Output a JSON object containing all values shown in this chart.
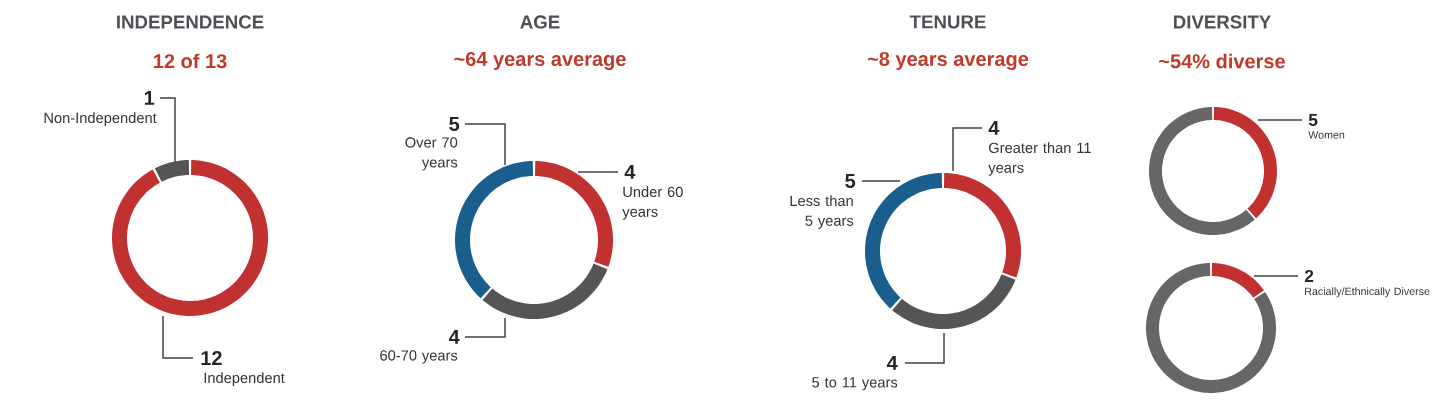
{
  "chart_data": [
    {
      "type": "donut",
      "title": "INDEPENDENCE",
      "subtitle": "12 of 13",
      "categories": [
        "Independent",
        "Non-Independent"
      ],
      "values": [
        12,
        1
      ],
      "colors": [
        "#c0312f",
        "#555555"
      ],
      "data_labels": true
    },
    {
      "type": "donut",
      "title": "AGE",
      "subtitle": "~64 years average",
      "categories": [
        "Under 60 years",
        "60-70 years",
        "Over 70 years"
      ],
      "values": [
        4,
        4,
        5
      ],
      "colors": [
        "#c0312f",
        "#555555",
        "#1a5e8e"
      ],
      "data_labels": true
    },
    {
      "type": "donut",
      "title": "TENURE",
      "subtitle": "~8 years average",
      "categories": [
        "Greater than 11 years",
        "5 to 11 years",
        "Less than 5 years"
      ],
      "values": [
        4,
        4,
        5
      ],
      "colors": [
        "#c0312f",
        "#555555",
        "#1a5e8e"
      ],
      "data_labels": true
    },
    {
      "type": "donut",
      "title": "DIVERSITY",
      "subtitle": "~54% diverse",
      "categories": [
        "Women",
        null
      ],
      "values": [
        5,
        8
      ],
      "colors": [
        "#c0312f",
        "#666666"
      ],
      "value_labels": [
        "5",
        null
      ]
    },
    {
      "type": "donut",
      "categories": [
        "Racially/Ethnically Diverse",
        null
      ],
      "values": [
        2,
        11
      ],
      "colors": [
        "#c0312f",
        "#666666"
      ],
      "value_labels": [
        "2",
        null
      ]
    }
  ]
}
